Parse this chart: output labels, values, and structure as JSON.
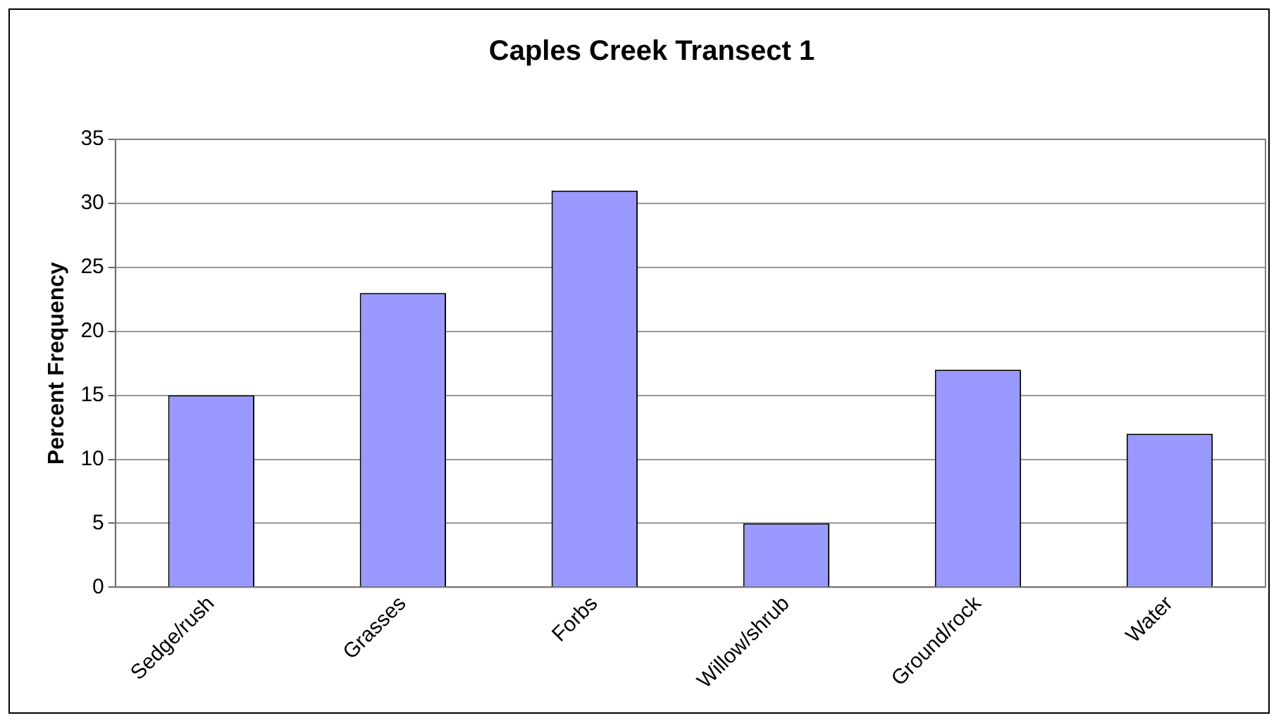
{
  "chart_data": {
    "type": "bar",
    "title": "Caples Creek Transect 1",
    "ylabel": "Percent Frequency",
    "categories": [
      "Sedge/rush",
      "Grasses",
      "Forbs",
      "Willow/shrub",
      "Ground/rock",
      "Water"
    ],
    "values": [
      15,
      23,
      31,
      5,
      17,
      12
    ],
    "color": "#9999ff",
    "ylim": [
      0,
      35
    ],
    "yticks": [
      0,
      5,
      10,
      15,
      20,
      25,
      30,
      35
    ],
    "grid": "y",
    "legend": false
  }
}
